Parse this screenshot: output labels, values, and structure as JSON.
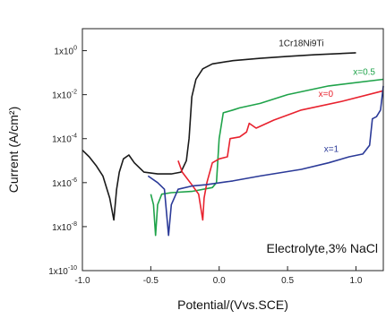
{
  "chart_data": {
    "type": "line",
    "xlabel": "Potential/(Vvs.SCE)",
    "ylabel": "Current (A/cm²)",
    "xlim": [
      -1.0,
      1.2
    ],
    "ylim": [
      1e-10,
      10
    ],
    "y_scale": "log",
    "grid": false,
    "x_ticks": [
      {
        "value": -1.0,
        "label": "-1.0"
      },
      {
        "value": -0.5,
        "label": "-0.5"
      },
      {
        "value": 0.0,
        "label": "0.0"
      },
      {
        "value": 0.5,
        "label": "0.5"
      },
      {
        "value": 1.0,
        "label": "1.0"
      }
    ],
    "y_ticks": [
      {
        "value": 1,
        "base": "1x10",
        "exp": "0"
      },
      {
        "value": 0.01,
        "base": "1x10",
        "exp": "-2"
      },
      {
        "value": 0.0001,
        "base": "1x10",
        "exp": "-4"
      },
      {
        "value": 1e-06,
        "base": "1x10",
        "exp": "-6"
      },
      {
        "value": 1e-08,
        "base": "1x10",
        "exp": "-8"
      },
      {
        "value": 1e-10,
        "base": "1x10",
        "exp": "-10"
      }
    ],
    "annotation": "Electrolyte,3% NaCl",
    "series": [
      {
        "name": "1Cr18Ni9Ti",
        "color": "#1a1a1a",
        "label_at": [
          0.6,
          1.6
        ],
        "points": [
          [
            -1.0,
            3e-05
          ],
          [
            -0.95,
            1.5e-05
          ],
          [
            -0.9,
            6e-06
          ],
          [
            -0.85,
            2e-06
          ],
          [
            -0.8,
            2e-07
          ],
          [
            -0.77,
            2e-08
          ],
          [
            -0.75,
            5e-07
          ],
          [
            -0.73,
            3e-06
          ],
          [
            -0.7,
            1.2e-05
          ],
          [
            -0.66,
            1.8e-05
          ],
          [
            -0.62,
            8e-06
          ],
          [
            -0.55,
            3e-06
          ],
          [
            -0.45,
            2.5e-06
          ],
          [
            -0.35,
            2.5e-06
          ],
          [
            -0.28,
            3e-06
          ],
          [
            -0.24,
            1e-05
          ],
          [
            -0.22,
            0.0001
          ],
          [
            -0.2,
            0.008
          ],
          [
            -0.17,
            0.05
          ],
          [
            -0.12,
            0.15
          ],
          [
            -0.05,
            0.25
          ],
          [
            0.1,
            0.35
          ],
          [
            0.3,
            0.45
          ],
          [
            0.5,
            0.55
          ],
          [
            0.7,
            0.65
          ],
          [
            1.0,
            0.8
          ]
        ]
      },
      {
        "name": "x=0.5",
        "color": "#1fa34a",
        "label_at": [
          1.06,
          0.08
        ],
        "points": [
          [
            -0.5,
            3e-07
          ],
          [
            -0.48,
            1e-07
          ],
          [
            -0.465,
            4e-09
          ],
          [
            -0.45,
            1e-07
          ],
          [
            -0.42,
            3e-07
          ],
          [
            -0.35,
            3.5e-07
          ],
          [
            -0.2,
            4e-07
          ],
          [
            -0.05,
            6e-07
          ],
          [
            -0.02,
            1e-06
          ],
          [
            0.0,
            0.0001
          ],
          [
            0.03,
            0.0015
          ],
          [
            0.1,
            0.002
          ],
          [
            0.15,
            0.0025
          ],
          [
            0.3,
            0.004
          ],
          [
            0.5,
            0.01
          ],
          [
            0.8,
            0.025
          ],
          [
            1.2,
            0.05
          ]
        ]
      },
      {
        "name": "x=0",
        "color": "#e8222e",
        "label_at": [
          0.78,
          0.008
        ],
        "points": [
          [
            -0.3,
            1e-05
          ],
          [
            -0.27,
            3e-06
          ],
          [
            -0.2,
            8e-07
          ],
          [
            -0.15,
            3e-07
          ],
          [
            -0.12,
            2e-08
          ],
          [
            -0.11,
            2e-07
          ],
          [
            -0.09,
            1e-06
          ],
          [
            -0.05,
            8e-06
          ],
          [
            0.0,
            1.2e-05
          ],
          [
            0.06,
            1.5e-05
          ],
          [
            0.08,
            0.0001
          ],
          [
            0.15,
            0.00012
          ],
          [
            0.2,
            0.0002
          ],
          [
            0.22,
            0.0005
          ],
          [
            0.27,
            0.0003
          ],
          [
            0.4,
            0.0007
          ],
          [
            0.6,
            0.002
          ],
          [
            0.9,
            0.005
          ],
          [
            1.2,
            0.015
          ]
        ]
      },
      {
        "name": "x=1",
        "color": "#2b3a98",
        "label_at": [
          0.82,
          2.5e-05
        ],
        "points": [
          [
            -0.52,
            2e-06
          ],
          [
            -0.45,
            1e-06
          ],
          [
            -0.4,
            5e-07
          ],
          [
            -0.37,
            4e-09
          ],
          [
            -0.35,
            1e-07
          ],
          [
            -0.3,
            5e-07
          ],
          [
            -0.2,
            7e-07
          ],
          [
            -0.1,
            8e-07
          ],
          [
            0.1,
            1.2e-06
          ],
          [
            0.3,
            2e-06
          ],
          [
            0.6,
            4e-06
          ],
          [
            0.8,
            8e-06
          ],
          [
            0.95,
            1.5e-05
          ],
          [
            1.05,
            2e-05
          ],
          [
            1.1,
            5e-05
          ],
          [
            1.12,
            0.0008
          ],
          [
            1.15,
            0.001
          ],
          [
            1.18,
            0.002
          ],
          [
            1.2,
            0.025
          ]
        ]
      }
    ]
  }
}
